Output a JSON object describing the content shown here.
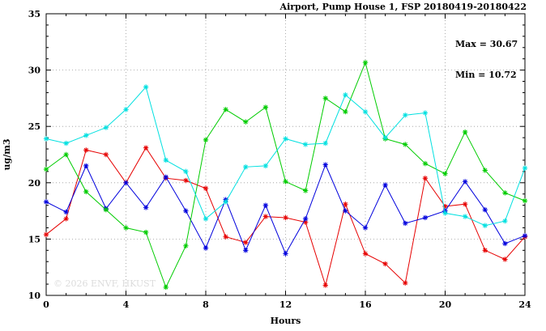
{
  "title": "Airport, Pump House 1, FSP 20180419-20180422",
  "annotation": {
    "max_label": "Max = 30.67",
    "min_label": "Min = 10.72"
  },
  "watermark": "© 2026 ENVF, HKUST",
  "chart_data": {
    "type": "line",
    "title": "Airport, Pump House 1, FSP 20180419-20180422",
    "xlabel": "Hours",
    "ylabel": "ug/m3",
    "xlim": [
      0,
      24
    ],
    "ylim": [
      10,
      35
    ],
    "xticks": [
      0,
      4,
      8,
      12,
      16,
      20,
      24
    ],
    "yticks": [
      10,
      15,
      20,
      25,
      30,
      35
    ],
    "minor_step_x": 1,
    "minor_step_y": 1,
    "grid": true,
    "grid_color": "#999999",
    "marker": "asterisk",
    "x": [
      0,
      1,
      2,
      3,
      4,
      5,
      6,
      7,
      8,
      9,
      10,
      11,
      12,
      13,
      14,
      15,
      16,
      17,
      18,
      19,
      20,
      21,
      22,
      23,
      24
    ],
    "series": [
      {
        "name": "red",
        "color": "#e60000",
        "values": [
          15.4,
          16.8,
          22.9,
          22.5,
          20.0,
          23.1,
          20.4,
          20.2,
          19.5,
          15.2,
          14.7,
          17.0,
          16.9,
          16.5,
          10.9,
          18.1,
          13.7,
          12.8,
          11.1,
          20.4,
          17.9,
          18.1,
          14.0,
          13.2,
          15.2
        ]
      },
      {
        "name": "blue",
        "color": "#0000dd",
        "values": [
          18.3,
          17.4,
          21.5,
          17.7,
          20.0,
          17.8,
          20.5,
          17.5,
          14.2,
          18.5,
          14.0,
          18.0,
          13.7,
          16.8,
          21.6,
          17.5,
          16.0,
          19.8,
          16.4,
          16.9,
          17.5,
          20.1,
          17.6,
          14.6,
          15.3
        ]
      },
      {
        "name": "green",
        "color": "#00cc00",
        "values": [
          21.2,
          22.5,
          19.2,
          17.6,
          16.0,
          15.6,
          10.72,
          14.4,
          23.8,
          26.5,
          25.4,
          26.7,
          20.1,
          19.3,
          27.5,
          26.3,
          30.67,
          23.9,
          23.4,
          21.7,
          20.8,
          24.5,
          21.1,
          19.1,
          18.4
        ]
      },
      {
        "name": "cyan",
        "color": "#00e0e0",
        "values": [
          23.9,
          23.5,
          24.2,
          24.9,
          26.5,
          28.5,
          22.0,
          21.0,
          16.8,
          18.3,
          21.4,
          21.5,
          23.9,
          23.4,
          23.5,
          27.8,
          26.3,
          24.0,
          26.0,
          26.2,
          17.3,
          17.0,
          16.2,
          16.6,
          21.3
        ]
      }
    ],
    "max_value": 30.67,
    "min_value": 10.72
  }
}
